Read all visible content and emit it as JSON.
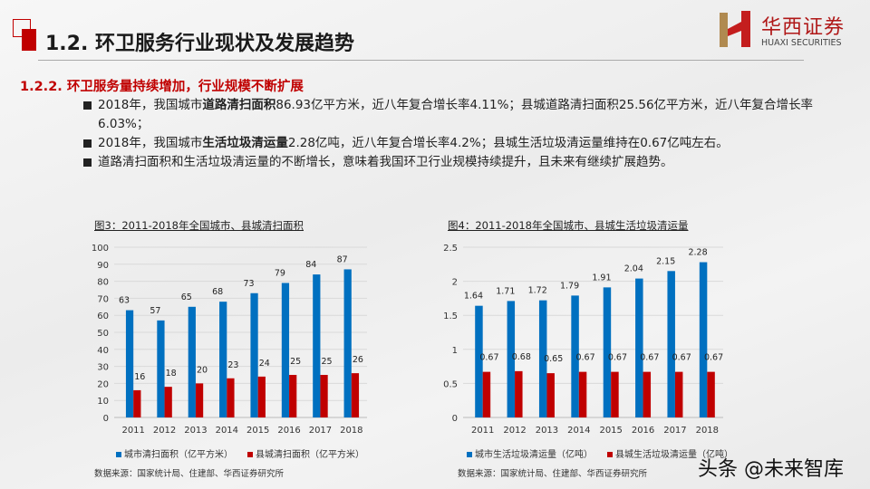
{
  "header": {
    "title": "1.2. 环卫服务行业现状及发展趋势",
    "logo_cn": "华西证券",
    "logo_en": "HUAXI SECURITIES"
  },
  "section": {
    "subtitle": "1.2.2. 环卫服务量持续增加，行业规模不断扩展",
    "bullets": [
      {
        "pre": "2018年，我国城市",
        "bold": "道路清扫面积",
        "post": "86.93亿平方米，近八年复合增长率4.11%；县城道路清扫面积25.56亿平方米，近八年复合增长率6.03%；"
      },
      {
        "pre": "2018年，我国城市",
        "bold": "生活垃圾清运量",
        "post": "2.28亿吨，近八年复合增长率4.2%；县城生活垃圾清运量维持在0.67亿吨左右。"
      },
      {
        "pre": "道路清扫面积和生活垃圾清运量的不断增长，意味着我国环卫行业规模持续提升，且未来有继续扩展趋势。",
        "bold": "",
        "post": ""
      }
    ]
  },
  "colors": {
    "blue": "#0070c0",
    "red": "#c00000",
    "accent": "#c00000"
  },
  "chart_data": [
    {
      "type": "bar",
      "title": "图3：2011-2018年全国城市、县城清扫面积",
      "categories": [
        "2011",
        "2012",
        "2013",
        "2014",
        "2015",
        "2016",
        "2017",
        "2018"
      ],
      "series": [
        {
          "name": "城市清扫面积（亿平方米）",
          "values": [
            63,
            57,
            65,
            68,
            73,
            79,
            84,
            87
          ],
          "labels": [
            "63",
            "57",
            "65",
            "68",
            "73",
            "79",
            "84",
            "87"
          ]
        },
        {
          "name": "县城清扫面积（亿平方米）",
          "values": [
            16,
            18,
            20,
            23,
            24,
            25,
            25,
            26
          ],
          "labels": [
            "16",
            "18",
            "20",
            "23",
            "24",
            "25",
            "25",
            "26"
          ]
        }
      ],
      "ylim": [
        0,
        100
      ],
      "yticks": [
        "0",
        "10",
        "20",
        "30",
        "40",
        "50",
        "60",
        "70",
        "80",
        "90",
        "100"
      ],
      "grid": true,
      "legend": "bottom",
      "source": "数据来源：国家统计局、住建部、华西证券研究所"
    },
    {
      "type": "bar",
      "title": "图4：2011-2018年全国城市、县城生活垃圾清运量",
      "categories": [
        "2011",
        "2012",
        "2013",
        "2014",
        "2015",
        "2016",
        "2017",
        "2018"
      ],
      "series": [
        {
          "name": "城市生活垃圾清运量（亿吨）",
          "values": [
            1.64,
            1.71,
            1.72,
            1.79,
            1.91,
            2.04,
            2.15,
            2.28
          ],
          "labels": [
            "1.64",
            "1.71",
            "1.72",
            "1.79",
            "1.91",
            "2.04",
            "2.15",
            "2.28"
          ]
        },
        {
          "name": "县城生活垃圾清运量（亿吨）",
          "values": [
            0.67,
            0.68,
            0.65,
            0.67,
            0.67,
            0.67,
            0.67,
            0.67
          ],
          "labels": [
            "0.67",
            "0.68",
            "0.65",
            "0.67",
            "0.67",
            "0.67",
            "0.67",
            "0.67"
          ]
        }
      ],
      "ylim": [
        0,
        2.5
      ],
      "yticks": [
        "0",
        "0.5",
        "1",
        "1.5",
        "2",
        "2.5"
      ],
      "grid": true,
      "legend": "bottom",
      "source": "数据来源：国家统计局、住建部、华西证券研究所"
    }
  ],
  "watermark": "头条 @未来智库"
}
